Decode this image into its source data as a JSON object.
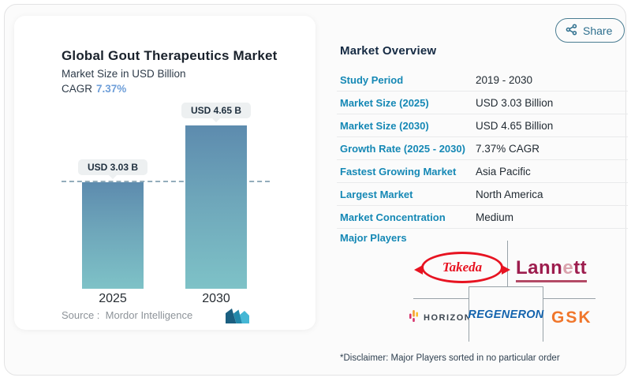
{
  "share": {
    "label": "Share"
  },
  "chart": {
    "title": "Global Gout Therapeutics Market",
    "subtitle": "Market Size in USD Billion",
    "cagr_label": "CAGR",
    "cagr_value": "7.37%",
    "source_label": "Source :",
    "source_value": "Mordor Intelligence"
  },
  "chart_data": {
    "type": "bar",
    "title": "Global Gout Therapeutics Market",
    "ylabel": "Market Size in USD Billion",
    "categories": [
      "2025",
      "2030"
    ],
    "values": [
      3.03,
      4.65
    ],
    "value_labels": [
      "USD 3.03 B",
      "USD 4.65 B"
    ],
    "cagr_percent": 7.37,
    "reference_line_value": 3.03,
    "grid": false,
    "bar_gradient": [
      "#5d8bae",
      "#7ec2c7"
    ],
    "reference_line_style": "dashed"
  },
  "overview": {
    "heading": "Market Overview",
    "rows": [
      {
        "label": "Study Period",
        "value": "2019 - 2030"
      },
      {
        "label": "Market Size (2025)",
        "value": "USD 3.03 Billion"
      },
      {
        "label": "Market Size (2030)",
        "value": "USD 4.65 Billion"
      },
      {
        "label": "Growth Rate (2025 - 2030)",
        "value": "7.37% CAGR"
      },
      {
        "label": "Fastest Growing Market",
        "value": "Asia Pacific"
      },
      {
        "label": "Largest Market",
        "value": "North America"
      },
      {
        "label": "Market Concentration",
        "value": "Medium"
      }
    ],
    "major_players_label": "Major Players",
    "players": {
      "takeda": "Takeda",
      "lannett_part1": "Lann",
      "lannett_e": "e",
      "lannett_part2": "tt",
      "horizon": "HORIZON.",
      "regeneron": "REGENERON",
      "gsk": "GSK"
    },
    "disclaimer": "*Disclaimer: Major Players sorted in no particular order"
  },
  "colors": {
    "accent_label_teal": "#1588b5",
    "heading_navy": "#152a43",
    "cagr_blue": "#6f9fd9",
    "bar_top": "#5d8bae",
    "bar_bottom": "#7ec2c7",
    "dashed_line": "#93adbb",
    "share_teal": "#2e6f8e",
    "takeda_red": "#e71321",
    "lannett_maroon": "#9d1d4e",
    "regeneron_blue": "#1464ae",
    "gsk_orange": "#f0762b"
  }
}
